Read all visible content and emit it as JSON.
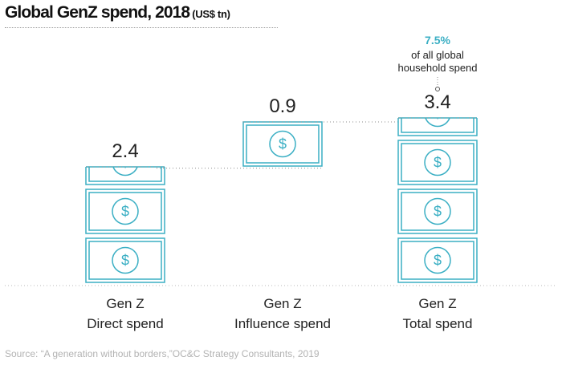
{
  "header": {
    "title": "Global GenZ spend, 2018",
    "unit": "(US$ tn)"
  },
  "source": "Source: “A generation without borders,”OC&C Strategy Consultants, 2019",
  "colors": {
    "accent": "#3bafc4",
    "text": "#222222",
    "muted": "#b3b3b3"
  },
  "icon": "dollar-banknote-icon",
  "chart_data": {
    "type": "bar",
    "title": "Global GenZ spend, 2018",
    "unit": "US$ tn",
    "categories": [
      [
        "Gen Z",
        "Direct spend"
      ],
      [
        "Gen Z",
        "Influence spend"
      ],
      [
        "Gen Z",
        "Total spend"
      ]
    ],
    "values": [
      2.4,
      0.9,
      3.4
    ],
    "value_labels": [
      "2.4",
      "0.9",
      "3.4"
    ],
    "bar_style": "stacked-banknote-pictogram",
    "annotation": {
      "category_index": 2,
      "highlight": "7.5%",
      "lines": [
        "of all global",
        "household spend"
      ]
    }
  }
}
